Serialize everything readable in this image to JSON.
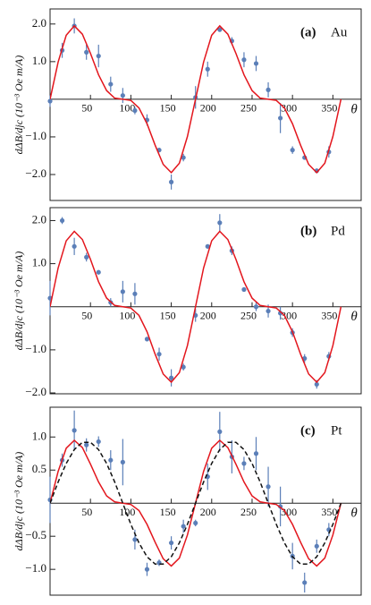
{
  "chart_data": [
    {
      "type": "scatter",
      "panel_label": "(a)",
      "material": "Au",
      "xlabel": "θ",
      "ylabel": "dΔB/djc (10⁻³ Oe m/A)",
      "xlim": [
        0,
        385
      ],
      "ylim": [
        -2.69,
        2.4
      ],
      "xticks": [
        50,
        100,
        150,
        200,
        250,
        300,
        350
      ],
      "yticks": [
        {
          "value": 2,
          "label": "2.0"
        },
        {
          "value": 1,
          "label": "1.0"
        },
        {
          "value": -1,
          "label": "−1.0"
        },
        {
          "value": -2,
          "label": "−2.0"
        }
      ],
      "series": [
        {
          "style": "points",
          "color": "#5b7fb8",
          "x": [
            0,
            15,
            30,
            45,
            60,
            75,
            90,
            105,
            120,
            135,
            150,
            165,
            180,
            195,
            210,
            225,
            240,
            255,
            270,
            285,
            300,
            315,
            330,
            345
          ],
          "values": [
            -0.05,
            1.3,
            1.95,
            1.25,
            1.15,
            0.4,
            0.1,
            -0.3,
            -0.55,
            -1.35,
            -2.2,
            -1.55,
            0.05,
            0.8,
            1.85,
            1.55,
            1.05,
            0.95,
            0.25,
            -0.5,
            -1.35,
            -1.55,
            -1.9,
            -1.4
          ],
          "errors": [
            0.15,
            0.2,
            0.2,
            0.2,
            0.3,
            0.2,
            0.2,
            0.1,
            0.15,
            0.05,
            0.2,
            0.1,
            0.3,
            0.2,
            0.05,
            0.1,
            0.2,
            0.2,
            0.2,
            0.4,
            0.1,
            0.05,
            0.05,
            0.15
          ]
        },
        {
          "style": "line",
          "color": "#e3161d",
          "x": [
            0,
            10,
            20,
            30,
            40,
            50,
            60,
            70,
            80,
            90,
            100,
            110,
            120,
            130,
            140,
            150,
            160,
            170,
            180,
            190,
            200,
            210,
            220,
            230,
            240,
            250,
            260,
            270,
            280,
            290,
            300,
            310,
            320,
            330,
            340,
            350,
            360
          ],
          "values": [
            0,
            0.99,
            1.7,
            1.95,
            1.73,
            1.22,
            0.65,
            0.23,
            0.03,
            0,
            -0.03,
            -0.23,
            -0.65,
            -1.22,
            -1.73,
            -1.95,
            -1.7,
            -0.99,
            0,
            0.99,
            1.7,
            1.95,
            1.73,
            1.22,
            0.65,
            0.23,
            0.03,
            0,
            -0.03,
            -0.23,
            -0.65,
            -1.22,
            -1.73,
            -1.95,
            -1.7,
            -0.99,
            0
          ]
        }
      ]
    },
    {
      "type": "scatter",
      "panel_label": "(b)",
      "material": "Pd",
      "xlabel": "θ",
      "ylabel": "dΔB/djc (10⁻³ Oe m/A)",
      "xlim": [
        0,
        385
      ],
      "ylim": [
        -2.02,
        2.3
      ],
      "xticks": [
        50,
        100,
        150,
        200,
        250,
        300,
        350
      ],
      "yticks": [
        {
          "value": 2,
          "label": "2.0"
        },
        {
          "value": 1,
          "label": "1.0"
        },
        {
          "value": -1,
          "label": "−1.0"
        },
        {
          "value": -2,
          "label": "−2.0"
        }
      ],
      "series": [
        {
          "style": "points",
          "color": "#5b7fb8",
          "x": [
            0,
            15,
            30,
            45,
            60,
            75,
            90,
            105,
            120,
            135,
            150,
            165,
            180,
            195,
            210,
            225,
            240,
            255,
            270,
            285,
            300,
            315,
            330,
            345
          ],
          "values": [
            0.2,
            2.0,
            1.4,
            1.15,
            0.8,
            0.1,
            0.35,
            0.3,
            -0.75,
            -1.1,
            -1.65,
            -1.4,
            -0.2,
            1.4,
            1.95,
            1.3,
            0.4,
            0,
            -0.1,
            -0.15,
            -0.6,
            -1.2,
            -1.8,
            -1.15
          ],
          "errors": [
            0.4,
            0.08,
            0.2,
            0.1,
            0.05,
            0.1,
            0.25,
            0.25,
            0.05,
            0.15,
            0.2,
            0.08,
            0.15,
            0.05,
            0.2,
            0.1,
            0.05,
            0.1,
            0.15,
            0.15,
            0.1,
            0.1,
            0.1,
            0.1
          ]
        },
        {
          "style": "line",
          "color": "#e3161d",
          "x": [
            0,
            10,
            20,
            30,
            40,
            50,
            60,
            70,
            80,
            90,
            100,
            110,
            120,
            130,
            140,
            150,
            160,
            170,
            180,
            190,
            200,
            210,
            220,
            230,
            240,
            250,
            260,
            270,
            280,
            290,
            300,
            310,
            320,
            330,
            340,
            350,
            360
          ],
          "values": [
            0,
            0.9,
            1.53,
            1.75,
            1.56,
            1.1,
            0.58,
            0.2,
            0.03,
            0,
            -0.03,
            -0.2,
            -0.58,
            -1.1,
            -1.56,
            -1.75,
            -1.53,
            -0.9,
            0,
            0.9,
            1.53,
            1.75,
            1.56,
            1.1,
            0.58,
            0.2,
            0.03,
            0,
            -0.03,
            -0.2,
            -0.58,
            -1.1,
            -1.56,
            -1.75,
            -1.53,
            -0.9,
            0
          ]
        }
      ]
    },
    {
      "type": "scatter",
      "panel_label": "(c)",
      "material": "Pt",
      "xlabel": "θ",
      "ylabel": "dΔB/djc (10⁻³ Oe m/A)",
      "xlim": [
        0,
        385
      ],
      "ylim": [
        -1.39,
        1.45
      ],
      "xticks": [
        50,
        100,
        150,
        200,
        250,
        300,
        350
      ],
      "yticks": [
        {
          "value": 1,
          "label": "1.0"
        },
        {
          "value": 0.5,
          "label": "0.5"
        },
        {
          "value": -0.5,
          "label": "−0.5"
        },
        {
          "value": -1,
          "label": "−1.0"
        }
      ],
      "series": [
        {
          "style": "points",
          "color": "#5b7fb8",
          "x": [
            0,
            15,
            30,
            45,
            60,
            75,
            90,
            105,
            120,
            135,
            150,
            165,
            180,
            195,
            210,
            225,
            240,
            255,
            270,
            285,
            300,
            315,
            330,
            345
          ],
          "values": [
            0.05,
            0.65,
            1.1,
            0.88,
            0.93,
            0.65,
            0.62,
            -0.55,
            -1.0,
            -0.9,
            -0.6,
            -0.35,
            -0.3,
            0.4,
            1.08,
            0.7,
            0.6,
            0.75,
            0.25,
            -0.05,
            -0.8,
            -1.2,
            -0.65,
            -0.4
          ],
          "errors": [
            0.35,
            0.1,
            0.3,
            0.1,
            0.08,
            0.15,
            0.35,
            0.15,
            0.1,
            0.05,
            0.1,
            0.1,
            0.05,
            0.2,
            0.3,
            0.25,
            0.1,
            0.25,
            0.3,
            0.3,
            0.2,
            0.15,
            0.1,
            0.1
          ]
        },
        {
          "style": "line",
          "color": "#e3161d",
          "x": [
            0,
            10,
            20,
            30,
            40,
            50,
            60,
            70,
            80,
            90,
            100,
            110,
            120,
            130,
            140,
            150,
            160,
            170,
            180,
            190,
            200,
            210,
            220,
            230,
            240,
            250,
            260,
            270,
            280,
            290,
            300,
            310,
            320,
            330,
            340,
            350,
            360
          ],
          "values": [
            0,
            0.48,
            0.83,
            0.95,
            0.84,
            0.59,
            0.32,
            0.11,
            0.02,
            0,
            -0.02,
            -0.11,
            -0.32,
            -0.59,
            -0.84,
            -0.95,
            -0.83,
            -0.48,
            0,
            0.48,
            0.83,
            0.95,
            0.84,
            0.59,
            0.32,
            0.11,
            0.02,
            0,
            -0.02,
            -0.11,
            -0.32,
            -0.59,
            -0.84,
            -0.95,
            -0.83,
            -0.48,
            0
          ]
        },
        {
          "style": "line",
          "dashed": true,
          "color": "#111111",
          "x": [
            0,
            10,
            20,
            30,
            40,
            50,
            60,
            70,
            80,
            90,
            100,
            110,
            120,
            130,
            140,
            150,
            160,
            170,
            180,
            190,
            200,
            210,
            220,
            230,
            240,
            250,
            260,
            270,
            280,
            290,
            300,
            310,
            320,
            330,
            340,
            350,
            360
          ],
          "values": [
            0,
            0.32,
            0.6,
            0.81,
            0.92,
            0.92,
            0.81,
            0.6,
            0.32,
            0,
            -0.32,
            -0.6,
            -0.81,
            -0.92,
            -0.92,
            -0.81,
            -0.6,
            -0.32,
            0,
            0.32,
            0.6,
            0.81,
            0.92,
            0.92,
            0.81,
            0.6,
            0.32,
            0,
            -0.32,
            -0.6,
            -0.81,
            -0.92,
            -0.92,
            -0.81,
            -0.6,
            -0.32,
            0
          ]
        }
      ]
    }
  ]
}
